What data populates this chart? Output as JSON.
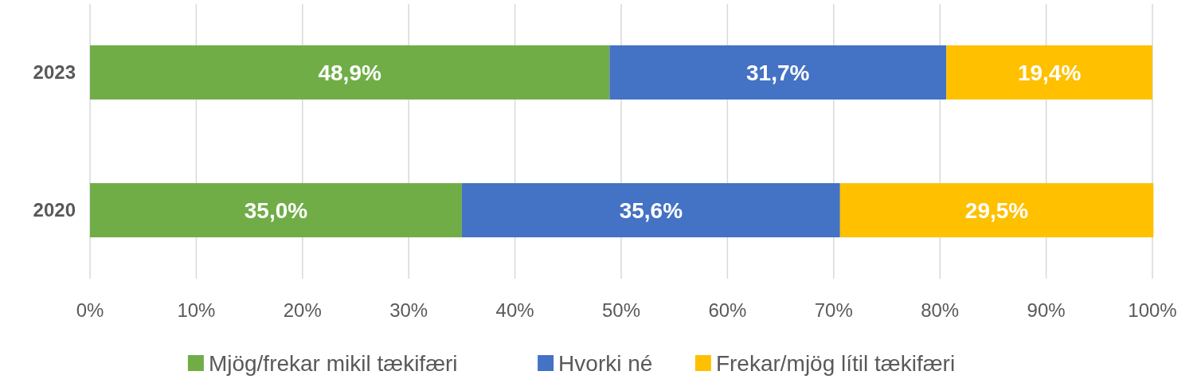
{
  "chart_data": {
    "type": "bar",
    "orientation": "horizontal",
    "stacked": true,
    "categories": [
      "2023",
      "2020"
    ],
    "series": [
      {
        "name": "Mjög/frekar mikil tækifæri",
        "color": "#70ad47",
        "values": [
          48.9,
          35.0
        ],
        "value_labels": [
          "48,9%",
          "35,0%"
        ]
      },
      {
        "name": "Hvorki né",
        "color": "#4472c4",
        "values": [
          31.7,
          35.6
        ],
        "value_labels": [
          "31,7%",
          "35,6%"
        ]
      },
      {
        "name": "Frekar/mjög lítil tækifæri",
        "color": "#ffc000",
        "values": [
          19.4,
          29.5
        ],
        "value_labels": [
          "19,4%",
          "29,5%"
        ]
      }
    ],
    "xlim": [
      0,
      100
    ],
    "xticks": [
      {
        "value": 0,
        "label": "0%"
      },
      {
        "value": 10,
        "label": "10%"
      },
      {
        "value": 20,
        "label": "20%"
      },
      {
        "value": 30,
        "label": "30%"
      },
      {
        "value": 40,
        "label": "40%"
      },
      {
        "value": 50,
        "label": "50%"
      },
      {
        "value": 60,
        "label": "60%"
      },
      {
        "value": 70,
        "label": "70%"
      },
      {
        "value": 80,
        "label": "80%"
      },
      {
        "value": 90,
        "label": "90%"
      },
      {
        "value": 100,
        "label": "100%"
      }
    ],
    "grid": "x",
    "legend": "bottom"
  }
}
